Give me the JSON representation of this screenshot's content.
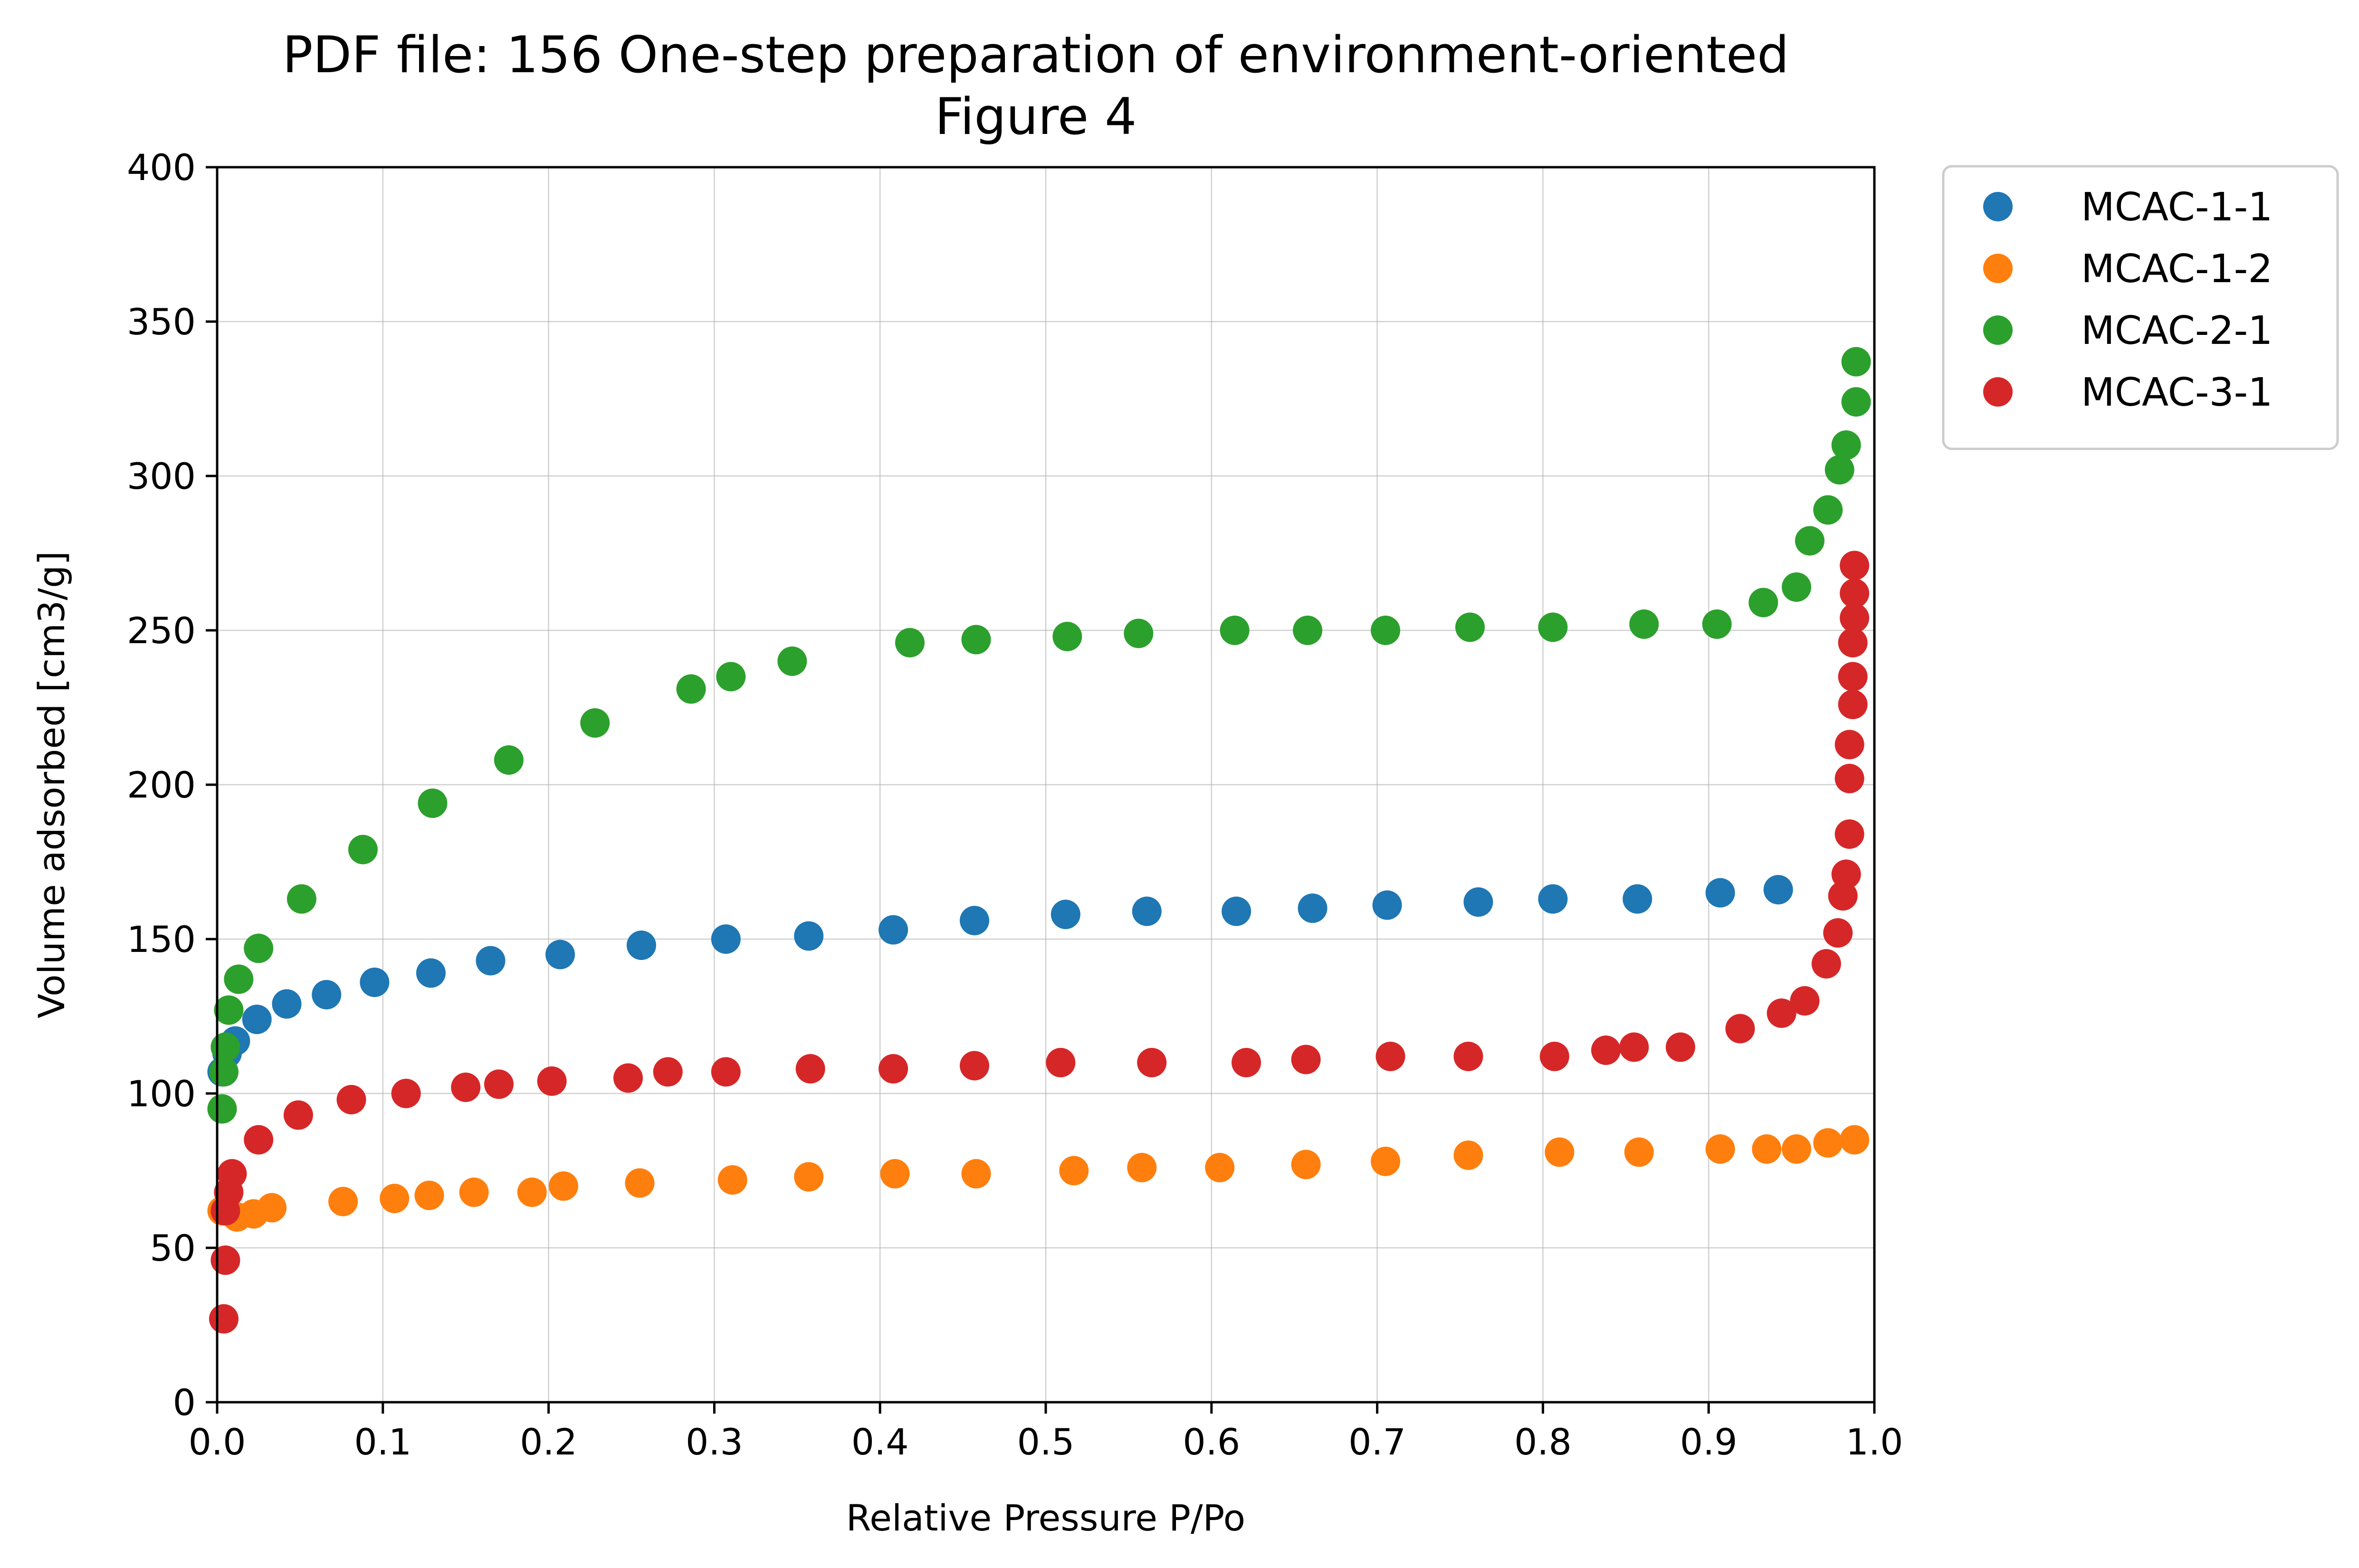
{
  "chart_data": {
    "type": "scatter",
    "title": "PDF file: 156 One-step preparation of environment-oriented",
    "subtitle": "Figure 4",
    "xlabel": "Relative Pressure P/Po",
    "ylabel": "Volume adsorbed [cm3/g]",
    "xlim": [
      0.0,
      1.0
    ],
    "ylim": [
      0,
      400
    ],
    "xticks": [
      "0.0",
      "0.1",
      "0.2",
      "0.3",
      "0.4",
      "0.5",
      "0.6",
      "0.7",
      "0.8",
      "0.9",
      "1.0"
    ],
    "yticks": [
      "0",
      "50",
      "100",
      "150",
      "200",
      "250",
      "300",
      "350",
      "400"
    ],
    "grid": true,
    "legend_position": "outside-top-right",
    "series": [
      {
        "name": "MCAC-1-1",
        "color": "#1f77b4",
        "points": [
          [
            0.003,
            107
          ],
          [
            0.006,
            113
          ],
          [
            0.011,
            117
          ],
          [
            0.024,
            124
          ],
          [
            0.042,
            129
          ],
          [
            0.066,
            132
          ],
          [
            0.095,
            136
          ],
          [
            0.129,
            139
          ],
          [
            0.165,
            143
          ],
          [
            0.207,
            145
          ],
          [
            0.256,
            148
          ],
          [
            0.307,
            150
          ],
          [
            0.357,
            151
          ],
          [
            0.408,
            153
          ],
          [
            0.457,
            156
          ],
          [
            0.512,
            158
          ],
          [
            0.561,
            159
          ],
          [
            0.615,
            159
          ],
          [
            0.661,
            160
          ],
          [
            0.706,
            161
          ],
          [
            0.761,
            162
          ],
          [
            0.806,
            163
          ],
          [
            0.857,
            163
          ],
          [
            0.907,
            165
          ],
          [
            0.942,
            166
          ]
        ]
      },
      {
        "name": "MCAC-1-2",
        "color": "#ff7f0e",
        "points": [
          [
            0.003,
            62
          ],
          [
            0.012,
            60
          ],
          [
            0.022,
            61
          ],
          [
            0.033,
            63
          ],
          [
            0.076,
            65
          ],
          [
            0.107,
            66
          ],
          [
            0.128,
            67
          ],
          [
            0.155,
            68
          ],
          [
            0.19,
            68
          ],
          [
            0.209,
            70
          ],
          [
            0.255,
            71
          ],
          [
            0.311,
            72
          ],
          [
            0.357,
            73
          ],
          [
            0.409,
            74
          ],
          [
            0.458,
            74
          ],
          [
            0.517,
            75
          ],
          [
            0.558,
            76
          ],
          [
            0.605,
            76
          ],
          [
            0.657,
            77
          ],
          [
            0.705,
            78
          ],
          [
            0.755,
            80
          ],
          [
            0.81,
            81
          ],
          [
            0.858,
            81
          ],
          [
            0.907,
            82
          ],
          [
            0.935,
            82
          ],
          [
            0.953,
            82
          ],
          [
            0.972,
            84
          ],
          [
            0.988,
            85
          ]
        ]
      },
      {
        "name": "MCAC-2-1",
        "color": "#2ca02c",
        "points": [
          [
            0.003,
            95
          ],
          [
            0.004,
            107
          ],
          [
            0.005,
            115
          ],
          [
            0.007,
            127
          ],
          [
            0.013,
            137
          ],
          [
            0.025,
            147
          ],
          [
            0.051,
            163
          ],
          [
            0.088,
            179
          ],
          [
            0.13,
            194
          ],
          [
            0.176,
            208
          ],
          [
            0.228,
            220
          ],
          [
            0.286,
            231
          ],
          [
            0.31,
            235
          ],
          [
            0.347,
            240
          ],
          [
            0.418,
            246
          ],
          [
            0.458,
            247
          ],
          [
            0.513,
            248
          ],
          [
            0.556,
            249
          ],
          [
            0.614,
            250
          ],
          [
            0.658,
            250
          ],
          [
            0.705,
            250
          ],
          [
            0.756,
            251
          ],
          [
            0.806,
            251
          ],
          [
            0.861,
            252
          ],
          [
            0.905,
            252
          ],
          [
            0.933,
            259
          ],
          [
            0.953,
            264
          ],
          [
            0.961,
            279
          ],
          [
            0.972,
            289
          ],
          [
            0.979,
            302
          ],
          [
            0.983,
            310
          ],
          [
            0.989,
            324
          ],
          [
            0.989,
            337
          ]
        ]
      },
      {
        "name": "MCAC-3-1",
        "color": "#d62728",
        "points": [
          [
            0.004,
            27
          ],
          [
            0.005,
            46
          ],
          [
            0.005,
            62
          ],
          [
            0.007,
            68
          ],
          [
            0.009,
            74
          ],
          [
            0.025,
            85
          ],
          [
            0.049,
            93
          ],
          [
            0.081,
            98
          ],
          [
            0.114,
            100
          ],
          [
            0.15,
            102
          ],
          [
            0.17,
            103
          ],
          [
            0.202,
            104
          ],
          [
            0.248,
            105
          ],
          [
            0.272,
            107
          ],
          [
            0.307,
            107
          ],
          [
            0.358,
            108
          ],
          [
            0.408,
            108
          ],
          [
            0.457,
            109
          ],
          [
            0.509,
            110
          ],
          [
            0.564,
            110
          ],
          [
            0.621,
            110
          ],
          [
            0.657,
            111
          ],
          [
            0.708,
            112
          ],
          [
            0.755,
            112
          ],
          [
            0.807,
            112
          ],
          [
            0.838,
            114
          ],
          [
            0.855,
            115
          ],
          [
            0.883,
            115
          ],
          [
            0.919,
            121
          ],
          [
            0.944,
            126
          ],
          [
            0.958,
            130
          ],
          [
            0.971,
            142
          ],
          [
            0.978,
            152
          ],
          [
            0.981,
            164
          ],
          [
            0.983,
            171
          ],
          [
            0.985,
            184
          ],
          [
            0.985,
            202
          ],
          [
            0.985,
            213
          ],
          [
            0.987,
            226
          ],
          [
            0.987,
            235
          ],
          [
            0.987,
            246
          ],
          [
            0.988,
            254
          ],
          [
            0.988,
            262
          ],
          [
            0.988,
            271
          ]
        ]
      }
    ]
  }
}
